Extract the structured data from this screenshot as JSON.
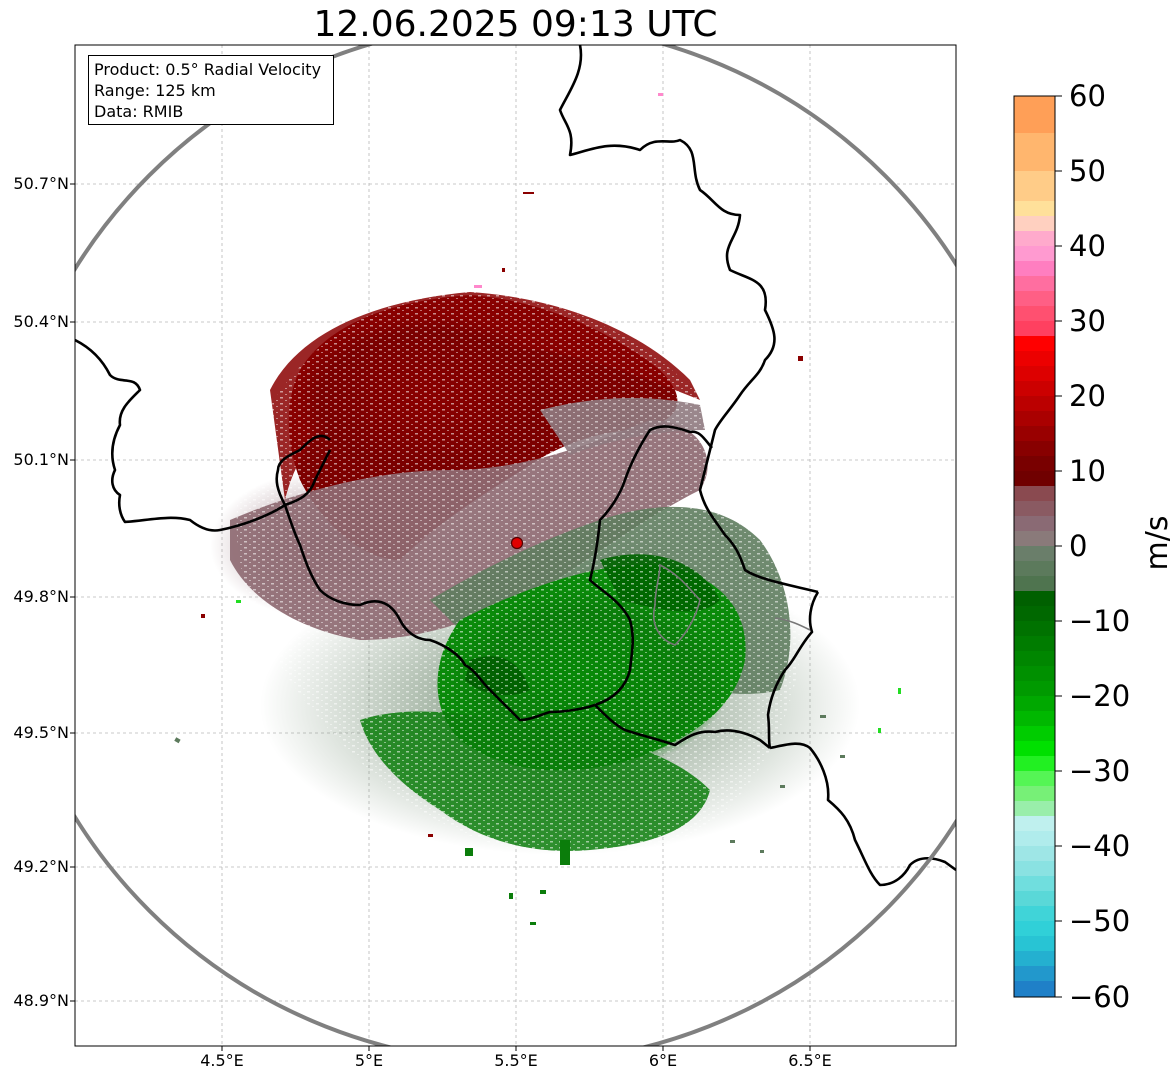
{
  "title": "12.06.2025 09:13 UTC",
  "info": {
    "product": "Product: 0.5° Radial Velocity",
    "range": "Range: 125 km",
    "data": "Data: RMIB"
  },
  "latitude_labels": [
    "50.7°N",
    "50.4°N",
    "50.1°N",
    "49.8°N",
    "49.5°N",
    "49.2°N",
    "48.9°N"
  ],
  "longitude_labels": [
    "4.5°E",
    "5°E",
    "5.5°E",
    "6°E",
    "6.5°E"
  ],
  "colorbar": {
    "unit": "m/s",
    "ticks": [
      "60",
      "50",
      "40",
      "30",
      "20",
      "10",
      "0",
      "−10",
      "−20",
      "−30",
      "−40",
      "−50",
      "−60"
    ]
  },
  "colors": {
    "range_ring": "#808080",
    "radar_site": "#e00000",
    "border": "#000000",
    "grid": "#b0b0b0"
  }
}
